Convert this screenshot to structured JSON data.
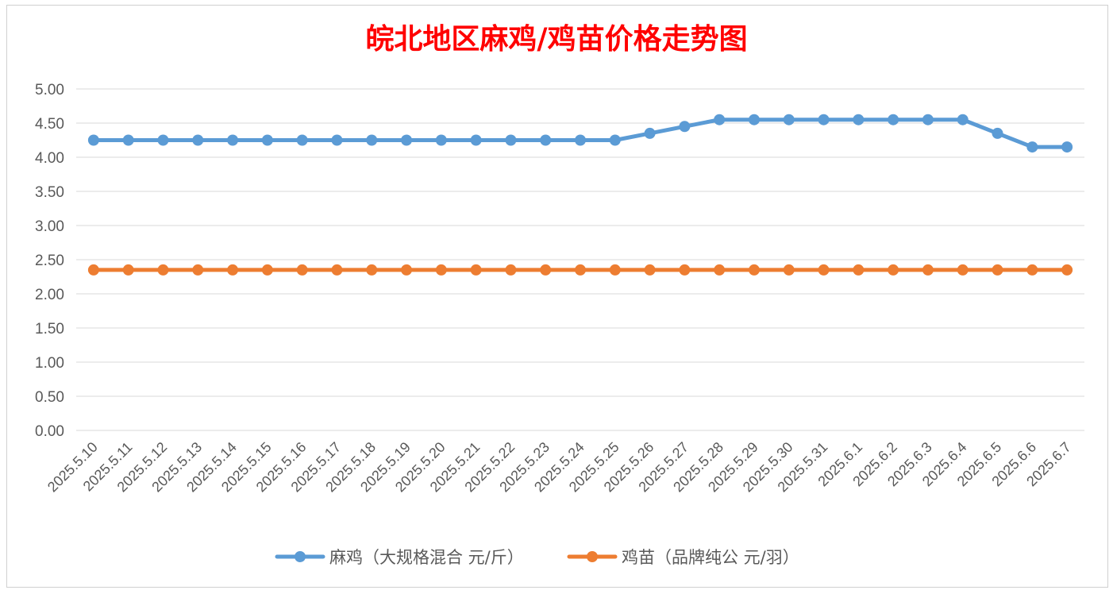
{
  "chart_data": {
    "type": "line",
    "title": "皖北地区麻鸡/鸡苗价格走势图",
    "xlabel": "",
    "ylabel": "",
    "ylim": [
      0,
      5
    ],
    "y_ticks": [
      "0.00",
      "0.50",
      "1.00",
      "1.50",
      "2.00",
      "2.50",
      "3.00",
      "3.50",
      "4.00",
      "4.50",
      "5.00"
    ],
    "grid": true,
    "legend_position": "bottom",
    "categories": [
      "2025.5.10",
      "2025.5.11",
      "2025.5.12",
      "2025.5.13",
      "2025.5.14",
      "2025.5.15",
      "2025.5.16",
      "2025.5.17",
      "2025.5.18",
      "2025.5.19",
      "2025.5.20",
      "2025.5.21",
      "2025.5.22",
      "2025.5.23",
      "2025.5.24",
      "2025.5.25",
      "2025.5.26",
      "2025.5.27",
      "2025.5.28",
      "2025.5.29",
      "2025.5.30",
      "2025.5.31",
      "2025.6.1",
      "2025.6.2",
      "2025.6.3",
      "2025.6.4",
      "2025.6.5",
      "2025.6.6",
      "2025.6.7"
    ],
    "series": [
      {
        "name": "麻鸡（大规格混合 元/斤）",
        "color": "#5b9bd5",
        "values": [
          4.25,
          4.25,
          4.25,
          4.25,
          4.25,
          4.25,
          4.25,
          4.25,
          4.25,
          4.25,
          4.25,
          4.25,
          4.25,
          4.25,
          4.25,
          4.25,
          4.35,
          4.45,
          4.55,
          4.55,
          4.55,
          4.55,
          4.55,
          4.55,
          4.55,
          4.55,
          4.35,
          4.15,
          4.15
        ]
      },
      {
        "name": "鸡苗（品牌纯公 元/羽）",
        "color": "#ed7d31",
        "values": [
          2.35,
          2.35,
          2.35,
          2.35,
          2.35,
          2.35,
          2.35,
          2.35,
          2.35,
          2.35,
          2.35,
          2.35,
          2.35,
          2.35,
          2.35,
          2.35,
          2.35,
          2.35,
          2.35,
          2.35,
          2.35,
          2.35,
          2.35,
          2.35,
          2.35,
          2.35,
          2.35,
          2.35,
          2.35
        ]
      }
    ]
  }
}
